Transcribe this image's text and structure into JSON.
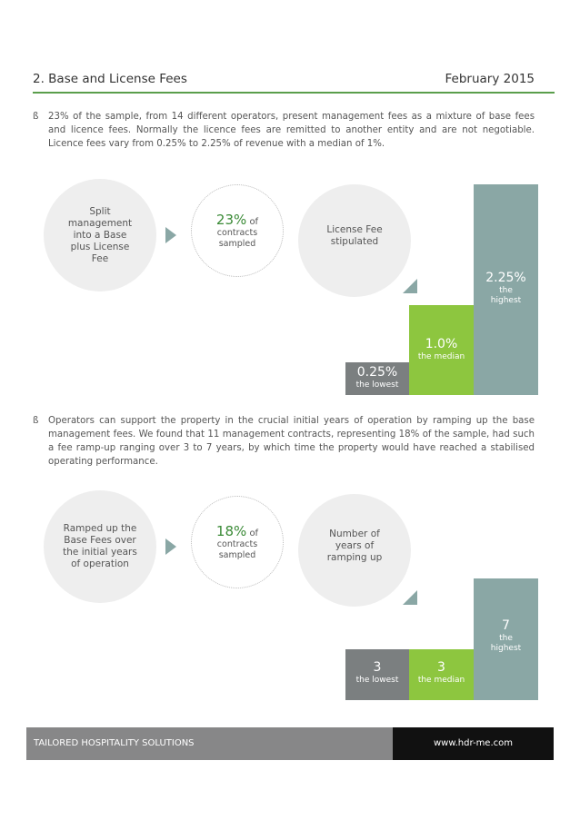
{
  "header": {
    "title": "2. Base and License Fees",
    "date": "February 2015"
  },
  "section1": {
    "bullet": "ß",
    "paragraph": "23% of the sample, from 14 different operators, present management fees as a mixture of base fees and licence fees. Normally the licence fees are remitted to another entity and are not negotiable. Licence fees vary from 0.25% to 2.25% of revenue with a median of 1%.",
    "circle1": "Split management into a Base plus License Fee",
    "circle2": {
      "value": "23%",
      "suffix": "of",
      "sub": "contracts sampled"
    },
    "circle3": "License Fee stipulated",
    "bars": [
      {
        "value": "0.25%",
        "label": "the lowest",
        "level": 0.25
      },
      {
        "value": "1.0%",
        "label": "the median",
        "level": 1.0
      },
      {
        "value": "2.25%",
        "label": "the highest",
        "level": 2.25
      }
    ]
  },
  "section2": {
    "bullet": "ß",
    "paragraph": "Operators can support the property in the crucial initial years of operation by ramping up the base management fees. We found that 11 management contracts, representing 18% of the sample, had such a fee ramp-up ranging over 3 to 7 years, by which time the property would have reached a stabilised operating performance.",
    "circle1": "Ramped up the Base Fees over the initial years of operation",
    "circle2": {
      "value": "18%",
      "suffix": "of",
      "sub": "contracts sampled"
    },
    "circle3": "Number of years of ramping up",
    "bars": [
      {
        "value": "3",
        "label": "the lowest",
        "level": 3
      },
      {
        "value": "3",
        "label": "the median",
        "level": 3
      },
      {
        "value": "7",
        "label": "the highest",
        "level": 7
      }
    ]
  },
  "footer": {
    "left": "TAILORED HOSPITALITY SOLUTIONS",
    "right": "www.hdr-me.com"
  },
  "colors": {
    "rule": "#5a9e4c",
    "green_text": "#3a8a36",
    "bar_grey": "#7b7f80",
    "bar_green": "#8dc63f",
    "bar_teal": "#8aa7a5",
    "circle_fill": "#eeeeee"
  }
}
